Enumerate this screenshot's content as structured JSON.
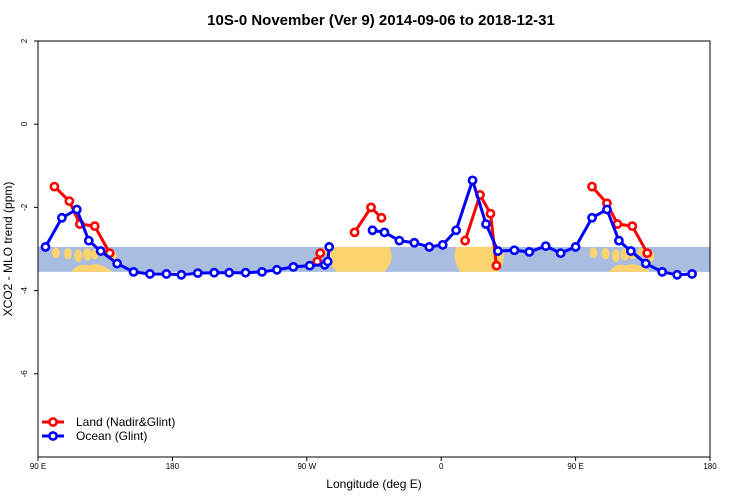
{
  "chart_data": {
    "type": "line",
    "title": "10S-0 November (Ver 9)   2014-09-06 to 2018-12-31",
    "xlabel": "Longitude (deg E)",
    "ylabel": "XCO2 - MLO trend (ppm)",
    "x_ticks": [
      {
        "value": 90,
        "label": "90 E"
      },
      {
        "value": 180,
        "label": "180"
      },
      {
        "value": 270,
        "label": "90 W"
      },
      {
        "value": 360,
        "label": "0"
      },
      {
        "value": 450,
        "label": "90 E"
      },
      {
        "value": 540,
        "label": "180"
      }
    ],
    "y_ticks": [
      {
        "value": 2,
        "label": "2"
      },
      {
        "value": 0,
        "label": "0"
      },
      {
        "value": -2,
        "label": "-2"
      },
      {
        "value": -4,
        "label": "-4"
      },
      {
        "value": -6,
        "label": "-6"
      }
    ],
    "xlim": [
      90,
      540
    ],
    "ylim": [
      -8,
      2
    ],
    "band": {
      "ymin": -3.55,
      "ymax": -2.95,
      "ocean_color": "#a8bde0",
      "land_color": "#fcd46f"
    },
    "legend": {
      "position": "bottom-left"
    },
    "series": [
      {
        "name": "Land (Nadir&Glint)",
        "color": "#ff0000",
        "segments": [
          [
            [
              101,
              -1.5
            ],
            [
              111,
              -1.85
            ],
            [
              118,
              -2.4
            ],
            [
              128,
              -2.45
            ],
            [
              138,
              -3.1
            ]
          ],
          [
            [
              277,
              -3.3
            ],
            [
              279,
              -3.1
            ]
          ],
          [
            [
              302,
              -2.6
            ],
            [
              313,
              -2.0
            ],
            [
              320,
              -2.25
            ]
          ],
          [
            [
              376,
              -2.8
            ],
            [
              386,
              -1.7
            ],
            [
              393,
              -2.15
            ],
            [
              397,
              -3.4
            ]
          ],
          [
            [
              461,
              -1.5
            ],
            [
              471,
              -1.9
            ],
            [
              478,
              -2.4
            ],
            [
              488,
              -2.45
            ],
            [
              498,
              -3.1
            ]
          ]
        ]
      },
      {
        "name": "Ocean (Glint)",
        "color": "#0000ff",
        "segments": [
          [
            [
              95,
              -2.95
            ],
            [
              106,
              -2.25
            ],
            [
              116,
              -2.05
            ],
            [
              124,
              -2.8
            ],
            [
              132,
              -3.05
            ],
            [
              143,
              -3.35
            ],
            [
              154,
              -3.55
            ],
            [
              165,
              -3.6
            ],
            [
              176,
              -3.6
            ],
            [
              186,
              -3.62
            ],
            [
              197,
              -3.58
            ],
            [
              208,
              -3.57
            ],
            [
              218,
              -3.57
            ],
            [
              229,
              -3.57
            ],
            [
              240,
              -3.55
            ],
            [
              250,
              -3.5
            ],
            [
              261,
              -3.43
            ],
            [
              272,
              -3.4
            ],
            [
              282,
              -3.38
            ],
            [
              284,
              -3.3
            ],
            [
              285,
              -2.95
            ]
          ],
          [
            [
              314,
              -2.55
            ],
            [
              322,
              -2.6
            ],
            [
              332,
              -2.8
            ],
            [
              342,
              -2.85
            ],
            [
              352,
              -2.95
            ],
            [
              361,
              -2.9
            ],
            [
              370,
              -2.55
            ],
            [
              381,
              -1.35
            ],
            [
              390,
              -2.4
            ],
            [
              398,
              -3.05
            ],
            [
              409,
              -3.03
            ],
            [
              419,
              -3.07
            ],
            [
              430,
              -2.93
            ],
            [
              440,
              -3.1
            ],
            [
              450,
              -2.95
            ],
            [
              461,
              -2.25
            ],
            [
              471,
              -2.05
            ],
            [
              479,
              -2.8
            ],
            [
              487,
              -3.05
            ],
            [
              497,
              -3.35
            ],
            [
              508,
              -3.55
            ],
            [
              518,
              -3.62
            ],
            [
              528,
              -3.6
            ]
          ]
        ]
      }
    ]
  }
}
